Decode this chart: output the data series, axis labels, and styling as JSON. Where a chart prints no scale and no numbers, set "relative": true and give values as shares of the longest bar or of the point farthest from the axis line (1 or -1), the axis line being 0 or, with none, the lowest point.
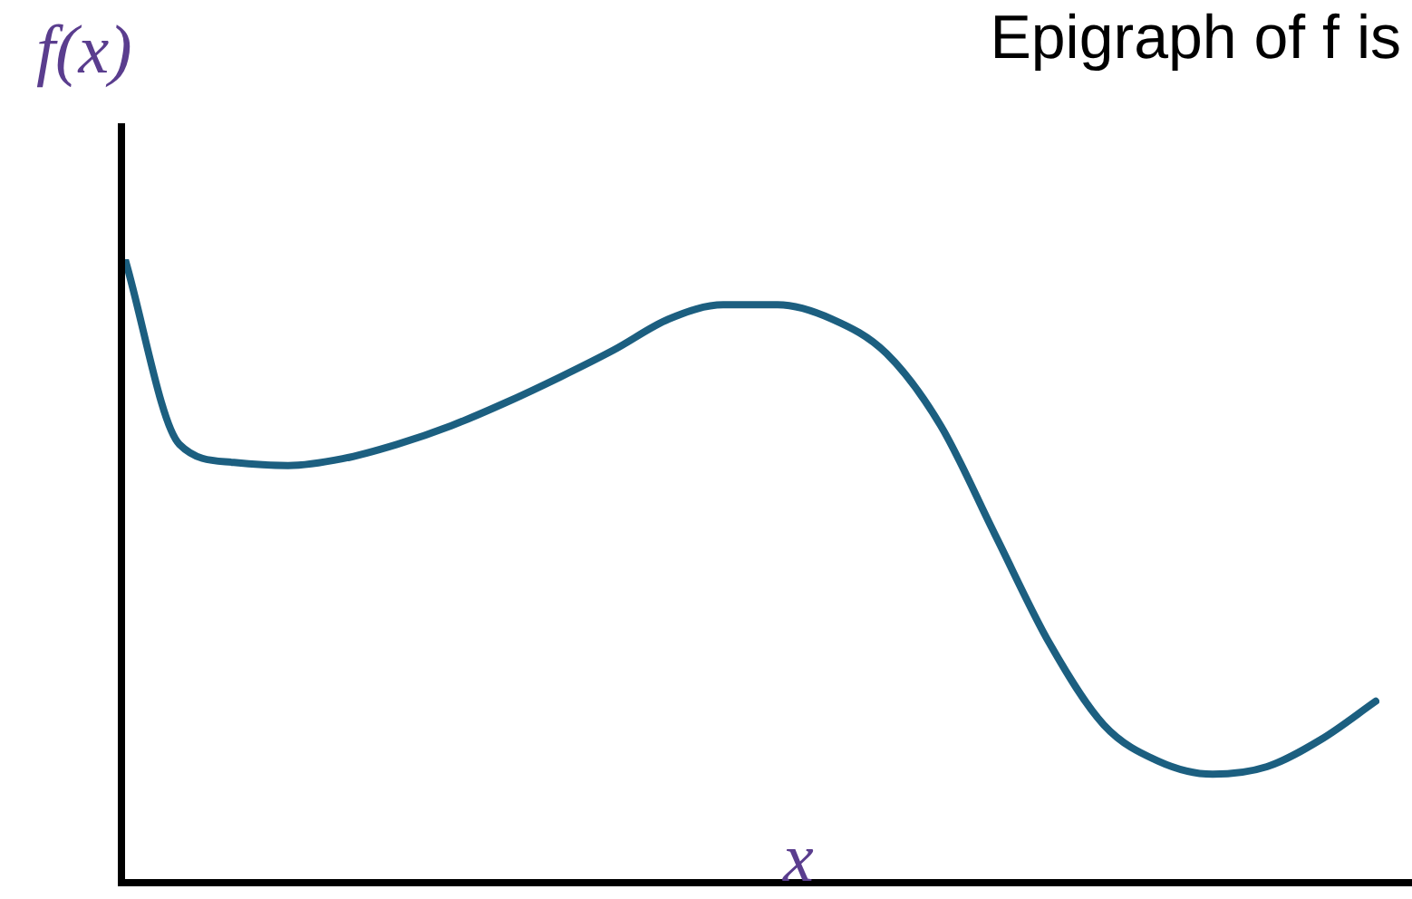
{
  "chart_data": {
    "type": "line",
    "title": "Epigraph of f is",
    "xlabel": "x",
    "ylabel": "f(x)",
    "relative": true,
    "categories": [
      null,
      null,
      null,
      null,
      null,
      null,
      null,
      null,
      null,
      null,
      null,
      null,
      null,
      null,
      null,
      null,
      null,
      null,
      null,
      null,
      null,
      null,
      null,
      null
    ],
    "series": [
      {
        "color": "#1c5f80",
        "values": [
          1,
          0.703,
          0.674,
          0.669,
          0.68,
          0.703,
          0.733,
          0.77,
          0.811,
          0.855,
          0.904,
          0.927,
          0.927,
          0.904,
          0.849,
          0.733,
          0.558,
          0.384,
          0.253,
          0.195,
          0.174,
          0.186,
          0.23,
          0.291
        ]
      }
    ],
    "legend": false,
    "marker": "none",
    "line_style": "solid"
  }
}
